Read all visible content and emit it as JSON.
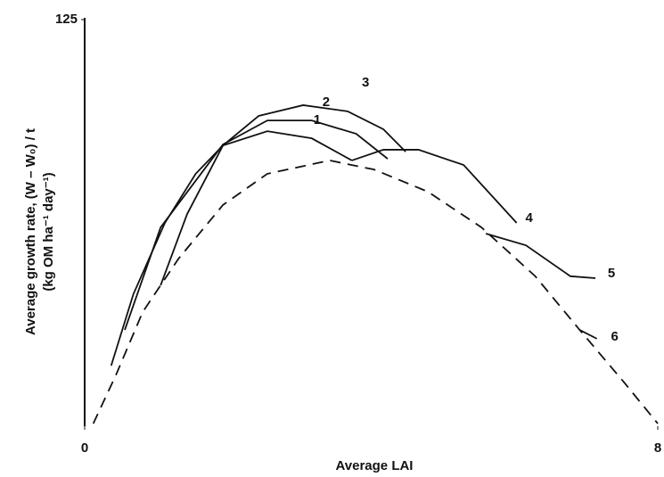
{
  "chart_data": {
    "type": "line",
    "xlabel": "Average LAI",
    "ylabel": [
      "Average growth rate, (W – W₀) / t",
      "(kg OM ha⁻¹ day⁻¹)"
    ],
    "xlim": [
      0,
      8
    ],
    "ylim": [
      0,
      125
    ],
    "xticks": [
      0,
      8
    ],
    "yticks": [
      125
    ],
    "series": [
      {
        "name": "1",
        "color": "#111111",
        "dashed": false,
        "x": [
          0.37,
          0.68,
          1.12,
          1.55,
          1.93,
          2.55,
          3.17,
          3.73
        ],
        "values": [
          18.6,
          40.6,
          62.5,
          77.6,
          86.3,
          90.7,
          88.5,
          81.7
        ]
      },
      {
        "name": "2",
        "color": "#111111",
        "dashed": false,
        "x": [
          0.56,
          1.06,
          1.93,
          2.55,
          3.17,
          3.79,
          4.23
        ],
        "values": [
          29.6,
          61.1,
          86.6,
          94.0,
          94.0,
          89.9,
          82.2
        ]
      },
      {
        "name": "3",
        "color": "#111111",
        "dashed": false,
        "x": [
          1.06,
          1.43,
          1.93,
          2.43,
          3.05,
          3.67,
          4.17,
          4.48
        ],
        "values": [
          43.3,
          65.2,
          86.3,
          95.4,
          98.7,
          96.8,
          91.3,
          84.4
        ]
      },
      {
        "name": "4",
        "color": "#111111",
        "dashed": false,
        "x": [
          3.73,
          4.17,
          4.66,
          5.29,
          6.03
        ],
        "values": [
          81.7,
          85.0,
          85.0,
          80.3,
          62.5
        ]
      },
      {
        "name": "5",
        "color": "#111111",
        "dashed": false,
        "x": [
          5.6,
          6.16,
          6.78,
          7.13
        ],
        "values": [
          59.2,
          55.6,
          46.1,
          45.5
        ]
      },
      {
        "name": "6",
        "color": "#111111",
        "dashed": false,
        "x": [
          6.91,
          7.15
        ],
        "values": [
          29.6,
          26.9
        ]
      },
      {
        "color": "#111111",
        "dashed": true,
        "x": [
          0.12,
          0.44,
          0.81,
          1.31,
          1.93,
          2.55,
          3.42,
          4.04,
          4.79,
          5.54,
          6.29,
          6.91,
          7.54,
          8.0
        ],
        "values": [
          0.8,
          15.9,
          35.1,
          51.5,
          68.0,
          77.6,
          81.7,
          78.9,
          72.1,
          61.1,
          46.1,
          29.6,
          13.2,
          0.8
        ]
      }
    ]
  }
}
